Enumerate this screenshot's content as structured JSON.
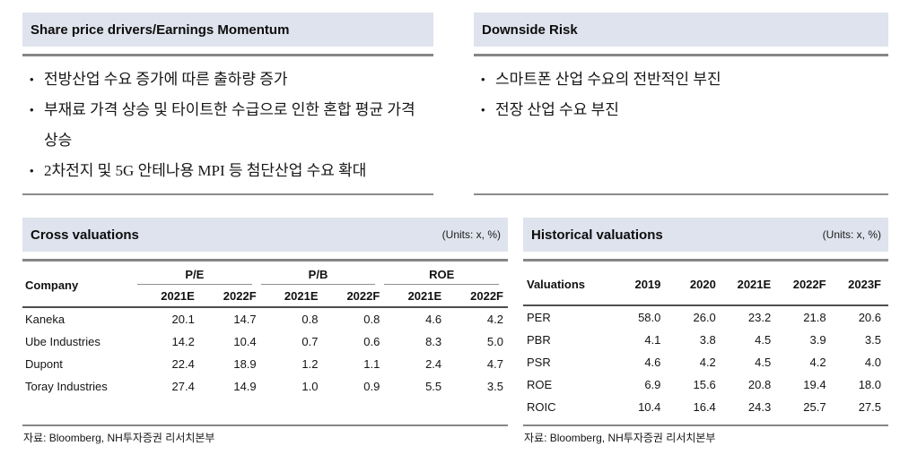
{
  "drivers_panel": {
    "title": "Share price drivers/Earnings Momentum",
    "bullets": [
      "전방산업 수요 증가에 따른 출하량 증가",
      "부재료 가격 상승 및 타이트한 수급으로 인한 혼합 평균 가격 상승",
      "2차전지 및 5G 안테나용 MPI 등 첨단산업 수요 확대"
    ]
  },
  "risk_panel": {
    "title": "Downside Risk",
    "bullets": [
      "스마트폰 산업 수요의 전반적인 부진",
      "전장 산업 수요 부진"
    ]
  },
  "cross_valuations": {
    "title": "Cross valuations",
    "units": "(Units: x, %)",
    "company_header": "Company",
    "groups": [
      "P/E",
      "P/B",
      "ROE"
    ],
    "sub_headers": [
      "2021E",
      "2022F",
      "2021E",
      "2022F",
      "2021E",
      "2022F"
    ],
    "rows": [
      {
        "company": "Kaneka",
        "values": [
          "20.1",
          "14.7",
          "0.8",
          "0.8",
          "4.6",
          "4.2"
        ]
      },
      {
        "company": "Ube Industries",
        "values": [
          "14.2",
          "10.4",
          "0.7",
          "0.6",
          "8.3",
          "5.0"
        ]
      },
      {
        "company": "Dupont",
        "values": [
          "22.4",
          "18.9",
          "1.2",
          "1.1",
          "2.4",
          "4.7"
        ]
      },
      {
        "company": "Toray Industries",
        "values": [
          "27.4",
          "14.9",
          "1.0",
          "0.9",
          "5.5",
          "3.5"
        ]
      }
    ],
    "source": "자료: Bloomberg, NH투자증권 리서치본부"
  },
  "historical_valuations": {
    "title": "Historical valuations",
    "units": "(Units: x, %)",
    "row_header": "Valuations",
    "year_headers": [
      "2019",
      "2020",
      "2021E",
      "2022F",
      "2023F"
    ],
    "rows": [
      {
        "metric": "PER",
        "values": [
          "58.0",
          "26.0",
          "23.2",
          "21.8",
          "20.6"
        ]
      },
      {
        "metric": "PBR",
        "values": [
          "4.1",
          "3.8",
          "4.5",
          "3.9",
          "3.5"
        ]
      },
      {
        "metric": "PSR",
        "values": [
          "4.6",
          "4.2",
          "4.5",
          "4.2",
          "4.0"
        ]
      },
      {
        "metric": "ROE",
        "values": [
          "6.9",
          "15.6",
          "20.8",
          "19.4",
          "18.0"
        ]
      },
      {
        "metric": "ROIC",
        "values": [
          "10.4",
          "16.4",
          "24.3",
          "25.7",
          "27.5"
        ]
      }
    ],
    "source": "자료: Bloomberg, NH투자증권 리서치본부"
  },
  "colors": {
    "panel_header_bg": "#dfe3ed",
    "rule_gray": "#868686",
    "header_rule_dark": "#4e4e4e"
  },
  "icons": {
    "bullet": "•"
  }
}
